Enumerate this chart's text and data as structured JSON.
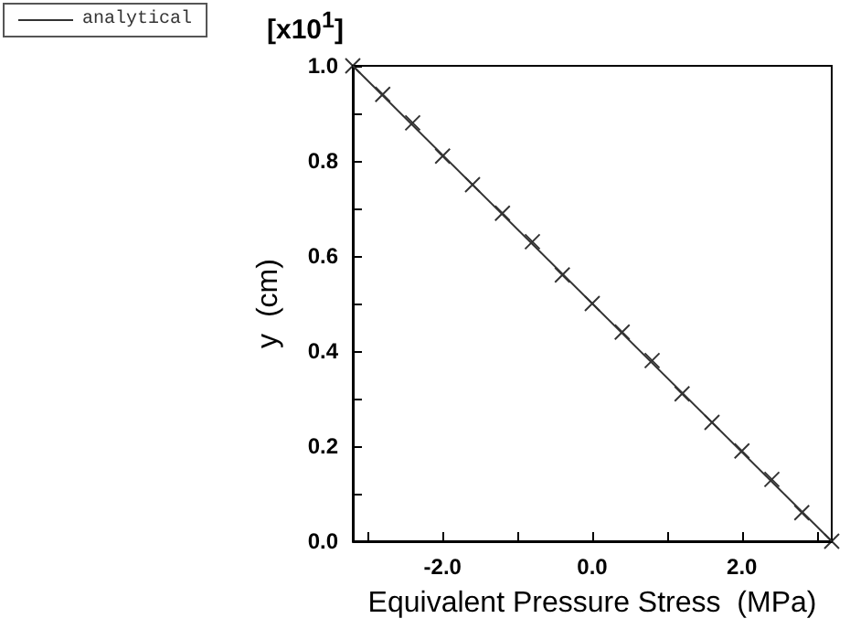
{
  "chart_data": {
    "type": "scatter",
    "xlabel": "Equivalent Pressure Stress  (MPa)",
    "ylabel": "y  (cm)",
    "annotations": [
      "[x10$^{1}$]"
    ],
    "xlim": [
      -3.2,
      3.2
    ],
    "ylim": [
      0,
      1.0
    ],
    "xticks": [
      {
        "value": -3,
        "label": null
      },
      {
        "value": -2,
        "label": "-2.0"
      },
      {
        "value": -1,
        "label": null
      },
      {
        "value": 0,
        "label": "0.0"
      },
      {
        "value": 1,
        "label": null
      },
      {
        "value": 2,
        "label": "2.0"
      },
      {
        "value": 3,
        "label": null
      }
    ],
    "yticks": [
      {
        "value": 0,
        "label": "0.0"
      },
      {
        "value": 0.1,
        "label": null
      },
      0.2,
      {
        "value": 0.3,
        "label": null
      },
      0.4,
      {
        "value": 0.5,
        "label": null
      },
      0.6,
      {
        "value": 0.7,
        "label": null
      },
      0.8,
      {
        "value": 0.9,
        "label": null
      },
      {
        "value": 1.0,
        "label": "1.0"
      }
    ],
    "grid": false,
    "legend": "top left",
    "series": [
      {
        "marker": "cross",
        "color": "#000000",
        "x": [
          -3.2,
          -2.8,
          -2.4,
          -2.0,
          -1.6,
          -1.2,
          -0.8,
          -0.4,
          0,
          0.4,
          0.8,
          1.2,
          1.6,
          2.0,
          2.4,
          2.8,
          3.2
        ],
        "values": [
          1.0,
          0.94,
          0.88,
          0.81,
          0.75,
          0.69,
          0.63,
          0.56,
          0.5,
          0.44,
          0.38,
          0.31,
          0.25,
          0.19,
          0.13,
          0.06,
          0
        ]
      },
      {
        "type": "line",
        "name": "analytical",
        "marker": "none",
        "line_style": "solid",
        "color": "#333333",
        "x": [
          -3.2,
          3.2
        ],
        "values": [
          1.0,
          0
        ]
      }
    ]
  }
}
